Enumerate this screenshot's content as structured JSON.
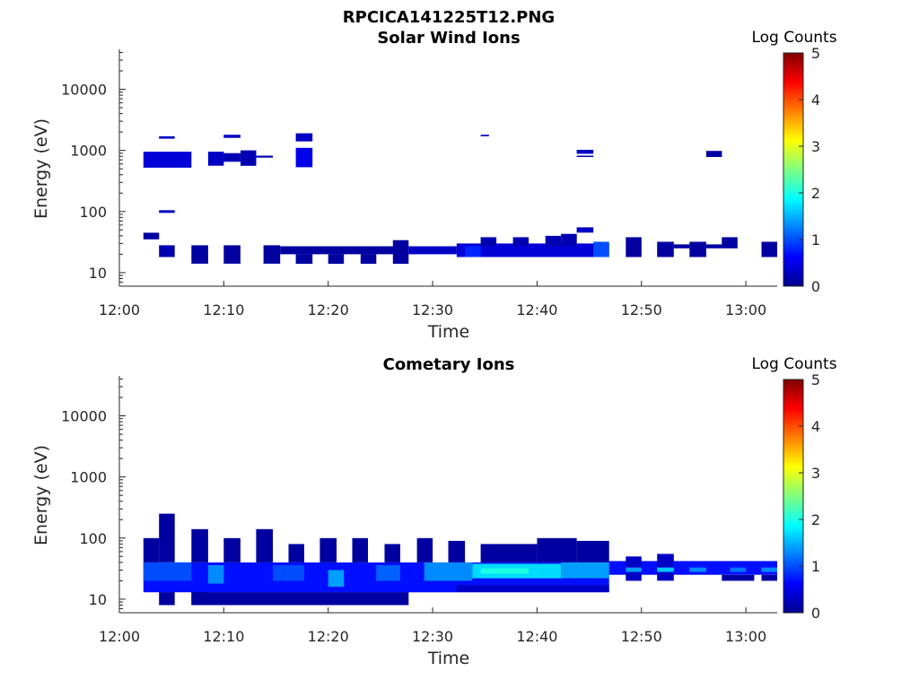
{
  "figure_title": "RPCICA141225T12.PNG",
  "colormap": [
    "#00008f",
    "#0000ff",
    "#0080ff",
    "#00ffff",
    "#80ff80",
    "#ffff00",
    "#ff8000",
    "#ff0000",
    "#800000"
  ],
  "chart_data": [
    {
      "type": "heatmap",
      "title": "Solar Wind Ions",
      "xlabel": "Time",
      "ylabel": "Energy (eV)",
      "yscale": "log",
      "xlim": [
        "12:00",
        "13:03"
      ],
      "ylim": [
        6,
        45000
      ],
      "x_ticks": [
        "12:00",
        "12:10",
        "12:20",
        "12:30",
        "12:40",
        "12:50",
        "13:00"
      ],
      "y_ticks": [
        "10",
        "100",
        "1000",
        "10000"
      ],
      "colorbar": {
        "label": "Log Counts",
        "ticks": [
          "0",
          "1",
          "2",
          "3",
          "4",
          "5"
        ],
        "range": [
          0,
          5
        ]
      },
      "cells": [
        {
          "t0": 2.3,
          "t1": 3.8,
          "e0": 35,
          "e1": 45,
          "v": 0.1
        },
        {
          "t0": 2.3,
          "t1": 6.9,
          "e0": 520,
          "e1": 950,
          "v": 0.4
        },
        {
          "t0": 3.8,
          "t1": 5.3,
          "e0": 1550,
          "e1": 1700,
          "v": 0.3
        },
        {
          "t0": 3.8,
          "t1": 5.3,
          "e0": 95,
          "e1": 105,
          "v": 0.3
        },
        {
          "t0": 3.8,
          "t1": 5.3,
          "e0": 18,
          "e1": 28,
          "v": 0.2
        },
        {
          "t0": 6.9,
          "t1": 8.5,
          "e0": 14,
          "e1": 28,
          "v": 0.1
        },
        {
          "t0": 8.5,
          "t1": 10.0,
          "e0": 560,
          "e1": 950,
          "v": 0.3
        },
        {
          "t0": 10.0,
          "t1": 11.6,
          "e0": 1600,
          "e1": 1800,
          "v": 0.3
        },
        {
          "t0": 10.0,
          "t1": 11.6,
          "e0": 650,
          "e1": 900,
          "v": 0.2
        },
        {
          "t0": 10.0,
          "t1": 11.6,
          "e0": 14,
          "e1": 28,
          "v": 0.1
        },
        {
          "t0": 11.6,
          "t1": 13.1,
          "e0": 560,
          "e1": 1000,
          "v": 0.2
        },
        {
          "t0": 13.1,
          "t1": 14.7,
          "e0": 760,
          "e1": 820,
          "v": 0.2
        },
        {
          "t0": 13.8,
          "t1": 15.4,
          "e0": 14,
          "e1": 28,
          "v": 0.1
        },
        {
          "t0": 15.4,
          "t1": 26.9,
          "e0": 20,
          "e1": 27,
          "v": 0.1
        },
        {
          "t0": 16.9,
          "t1": 18.5,
          "e0": 530,
          "e1": 1100,
          "v": 0.5
        },
        {
          "t0": 16.9,
          "t1": 18.5,
          "e0": 1400,
          "e1": 1900,
          "v": 0.3
        },
        {
          "t0": 16.9,
          "t1": 18.5,
          "e0": 14,
          "e1": 20,
          "v": 0.1
        },
        {
          "t0": 20.0,
          "t1": 21.5,
          "e0": 14,
          "e1": 20,
          "v": 0.1
        },
        {
          "t0": 23.1,
          "t1": 24.6,
          "e0": 14,
          "e1": 20,
          "v": 0.1
        },
        {
          "t0": 26.2,
          "t1": 27.7,
          "e0": 14,
          "e1": 34,
          "v": 0.1
        },
        {
          "t0": 27.7,
          "t1": 32.3,
          "e0": 20,
          "e1": 27,
          "v": 0.3
        },
        {
          "t0": 32.3,
          "t1": 46.9,
          "e0": 18,
          "e1": 30,
          "v": 0.4
        },
        {
          "t0": 33.1,
          "t1": 34.6,
          "e0": 18,
          "e1": 27,
          "v": 0.8
        },
        {
          "t0": 34.6,
          "t1": 35.4,
          "e0": 1700,
          "e1": 1800,
          "v": 0.3
        },
        {
          "t0": 34.6,
          "t1": 36.1,
          "e0": 27,
          "e1": 38,
          "v": 0.2
        },
        {
          "t0": 37.7,
          "t1": 39.2,
          "e0": 27,
          "e1": 38,
          "v": 0.2
        },
        {
          "t0": 40.8,
          "t1": 42.3,
          "e0": 27,
          "e1": 40,
          "v": 0.2
        },
        {
          "t0": 42.3,
          "t1": 43.8,
          "e0": 27,
          "e1": 43,
          "v": 0.2
        },
        {
          "t0": 43.8,
          "t1": 45.4,
          "e0": 45,
          "e1": 55,
          "v": 0.3
        },
        {
          "t0": 43.8,
          "t1": 45.4,
          "e0": 880,
          "e1": 1020,
          "v": 0.3
        },
        {
          "t0": 43.8,
          "t1": 45.4,
          "e0": 780,
          "e1": 820,
          "v": 0.2
        },
        {
          "t0": 45.4,
          "t1": 46.9,
          "e0": 18,
          "e1": 32,
          "v": 1.0
        },
        {
          "t0": 48.5,
          "t1": 50.0,
          "e0": 18,
          "e1": 38,
          "v": 0.1
        },
        {
          "t0": 51.5,
          "t1": 53.1,
          "e0": 18,
          "e1": 32,
          "v": 0.1
        },
        {
          "t0": 53.1,
          "t1": 54.6,
          "e0": 25,
          "e1": 29,
          "v": 0.1
        },
        {
          "t0": 54.6,
          "t1": 56.2,
          "e0": 18,
          "e1": 32,
          "v": 0.1
        },
        {
          "t0": 56.2,
          "t1": 57.7,
          "e0": 25,
          "e1": 29,
          "v": 0.1
        },
        {
          "t0": 56.2,
          "t1": 57.7,
          "e0": 780,
          "e1": 980,
          "v": 0.1
        },
        {
          "t0": 57.7,
          "t1": 59.2,
          "e0": 25,
          "e1": 38,
          "v": 0.1
        },
        {
          "t0": 61.5,
          "t1": 63.0,
          "e0": 18,
          "e1": 32,
          "v": 0.1
        }
      ]
    },
    {
      "type": "heatmap",
      "title": "Cometary Ions",
      "xlabel": "Time",
      "ylabel": "Energy (eV)",
      "yscale": "log",
      "xlim": [
        "12:00",
        "13:03"
      ],
      "ylim": [
        6,
        45000
      ],
      "x_ticks": [
        "12:00",
        "12:10",
        "12:20",
        "12:30",
        "12:40",
        "12:50",
        "13:00"
      ],
      "y_ticks": [
        "10",
        "100",
        "1000",
        "10000"
      ],
      "colorbar": {
        "label": "Log Counts",
        "ticks": [
          "0",
          "1",
          "2",
          "3",
          "4",
          "5"
        ],
        "range": [
          0,
          5
        ]
      },
      "cells": [
        {
          "t0": 2.3,
          "t1": 46.9,
          "e0": 13,
          "e1": 40,
          "v": 0.7
        },
        {
          "t0": 2.3,
          "t1": 3.8,
          "e0": 40,
          "e1": 100,
          "v": 0.1
        },
        {
          "t0": 3.8,
          "t1": 5.3,
          "e0": 40,
          "e1": 250,
          "v": 0.1
        },
        {
          "t0": 3.8,
          "t1": 5.3,
          "e0": 8,
          "e1": 13,
          "v": 0.1
        },
        {
          "t0": 6.9,
          "t1": 8.5,
          "e0": 40,
          "e1": 140,
          "v": 0.1
        },
        {
          "t0": 6.9,
          "t1": 8.5,
          "e0": 8,
          "e1": 13,
          "v": 0.1
        },
        {
          "t0": 10.0,
          "t1": 11.6,
          "e0": 40,
          "e1": 100,
          "v": 0.1
        },
        {
          "t0": 13.1,
          "t1": 14.7,
          "e0": 40,
          "e1": 140,
          "v": 0.1
        },
        {
          "t0": 16.2,
          "t1": 17.7,
          "e0": 40,
          "e1": 80,
          "v": 0.1
        },
        {
          "t0": 19.2,
          "t1": 20.8,
          "e0": 40,
          "e1": 100,
          "v": 0.1
        },
        {
          "t0": 22.3,
          "t1": 23.8,
          "e0": 40,
          "e1": 100,
          "v": 0.1
        },
        {
          "t0": 25.4,
          "t1": 26.9,
          "e0": 40,
          "e1": 80,
          "v": 0.1
        },
        {
          "t0": 28.5,
          "t1": 30.0,
          "e0": 40,
          "e1": 100,
          "v": 0.1
        },
        {
          "t0": 31.5,
          "t1": 33.1,
          "e0": 40,
          "e1": 90,
          "v": 0.1
        },
        {
          "t0": 34.6,
          "t1": 40.0,
          "e0": 40,
          "e1": 80,
          "v": 0.1
        },
        {
          "t0": 40.0,
          "t1": 43.8,
          "e0": 40,
          "e1": 100,
          "v": 0.1
        },
        {
          "t0": 43.8,
          "t1": 46.9,
          "e0": 40,
          "e1": 90,
          "v": 0.1
        },
        {
          "t0": 2.3,
          "t1": 6.9,
          "e0": 20,
          "e1": 40,
          "v": 1.0
        },
        {
          "t0": 8.5,
          "t1": 10.0,
          "e0": 18,
          "e1": 36,
          "v": 1.3
        },
        {
          "t0": 14.7,
          "t1": 17.7,
          "e0": 20,
          "e1": 36,
          "v": 1.0
        },
        {
          "t0": 20.0,
          "t1": 21.5,
          "e0": 16,
          "e1": 30,
          "v": 1.4
        },
        {
          "t0": 24.6,
          "t1": 26.9,
          "e0": 20,
          "e1": 36,
          "v": 1.1
        },
        {
          "t0": 29.2,
          "t1": 33.8,
          "e0": 20,
          "e1": 40,
          "v": 1.3
        },
        {
          "t0": 33.8,
          "t1": 42.3,
          "e0": 22,
          "e1": 38,
          "v": 1.7
        },
        {
          "t0": 34.6,
          "t1": 39.2,
          "e0": 26,
          "e1": 32,
          "v": 2.0
        },
        {
          "t0": 42.3,
          "t1": 46.9,
          "e0": 22,
          "e1": 40,
          "v": 1.4
        },
        {
          "t0": 46.9,
          "t1": 63.0,
          "e0": 25,
          "e1": 42,
          "v": 0.7
        },
        {
          "t0": 48.5,
          "t1": 50.0,
          "e0": 20,
          "e1": 50,
          "v": 0.3
        },
        {
          "t0": 48.5,
          "t1": 50.0,
          "e0": 28,
          "e1": 33,
          "v": 1.4
        },
        {
          "t0": 51.5,
          "t1": 53.1,
          "e0": 20,
          "e1": 55,
          "v": 0.3
        },
        {
          "t0": 51.5,
          "t1": 53.1,
          "e0": 28,
          "e1": 33,
          "v": 1.6
        },
        {
          "t0": 54.6,
          "t1": 56.2,
          "e0": 28,
          "e1": 33,
          "v": 1.3
        },
        {
          "t0": 57.7,
          "t1": 60.8,
          "e0": 20,
          "e1": 25,
          "v": 0.1
        },
        {
          "t0": 58.5,
          "t1": 60.0,
          "e0": 28,
          "e1": 33,
          "v": 1.2
        },
        {
          "t0": 61.5,
          "t1": 63.0,
          "e0": 20,
          "e1": 25,
          "v": 0.1
        },
        {
          "t0": 61.5,
          "t1": 63.0,
          "e0": 28,
          "e1": 33,
          "v": 1.3
        },
        {
          "t0": 27.7,
          "t1": 32.3,
          "e0": 13,
          "e1": 17,
          "v": 0.7
        },
        {
          "t0": 32.3,
          "t1": 46.9,
          "e0": 13,
          "e1": 17,
          "v": 0.3
        },
        {
          "t0": 6.9,
          "t1": 27.7,
          "e0": 8,
          "e1": 13,
          "v": 0.1
        }
      ]
    }
  ]
}
